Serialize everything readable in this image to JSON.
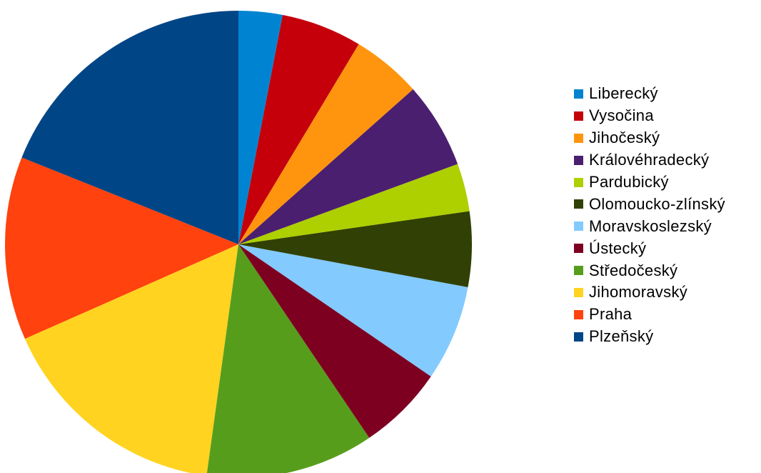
{
  "chart_data": {
    "type": "pie",
    "title": "",
    "legend_position": "right",
    "start_angle_deg": 0,
    "direction": "counterclockwise",
    "series": [
      {
        "name": "Plzeňský",
        "value": 20.0,
        "color": "#004586"
      },
      {
        "name": "Praha",
        "value": 13.4,
        "color": "#ff420e"
      },
      {
        "name": "Jihomoravský",
        "value": 17.1,
        "color": "#ffd320"
      },
      {
        "name": "Středočeský",
        "value": 12.3,
        "color": "#579d1c"
      },
      {
        "name": "Ústecký",
        "value": 6.3,
        "color": "#7e0021"
      },
      {
        "name": "Moravskoslezský",
        "value": 7.0,
        "color": "#83caff"
      },
      {
        "name": "Olomoucko-zlínský",
        "value": 5.5,
        "color": "#314004"
      },
      {
        "name": "Pardubický",
        "value": 3.5,
        "color": "#aecf00"
      },
      {
        "name": "Královéhradecký",
        "value": 6.3,
        "color": "#4b1f6f"
      },
      {
        "name": "Jihočeský",
        "value": 5.1,
        "color": "#ff950e"
      },
      {
        "name": "Vysočina",
        "value": 5.9,
        "color": "#c5000b"
      },
      {
        "name": "Liberecký",
        "value": 3.2,
        "color": "#0084d1"
      }
    ]
  }
}
